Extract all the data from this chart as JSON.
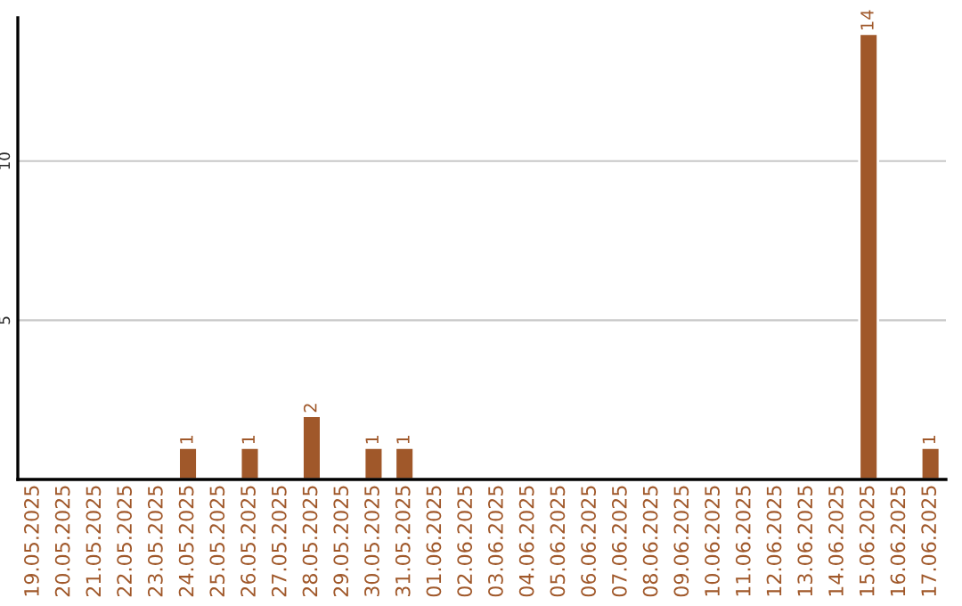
{
  "chart_data": {
    "type": "bar",
    "categories": [
      "19.05.2025",
      "20.05.2025",
      "21.05.2025",
      "22.05.2025",
      "23.05.2025",
      "24.05.2025",
      "25.05.2025",
      "26.05.2025",
      "27.05.2025",
      "28.05.2025",
      "29.05.2025",
      "30.05.2025",
      "31.05.2025",
      "01.06.2025",
      "02.06.2025",
      "03.06.2025",
      "04.06.2025",
      "05.06.2025",
      "06.06.2025",
      "07.06.2025",
      "08.06.2025",
      "09.06.2025",
      "10.06.2025",
      "11.06.2025",
      "12.06.2025",
      "13.06.2025",
      "14.06.2025",
      "15.06.2025",
      "16.06.2025",
      "17.06.2025"
    ],
    "values": [
      null,
      null,
      null,
      null,
      null,
      1,
      null,
      1,
      null,
      2,
      null,
      1,
      1,
      null,
      null,
      null,
      null,
      null,
      null,
      null,
      null,
      null,
      null,
      null,
      null,
      null,
      null,
      14,
      null,
      1
    ],
    "value_labels": [
      null,
      null,
      null,
      null,
      null,
      "1",
      null,
      "1",
      null,
      "2",
      null,
      "1",
      "1",
      null,
      null,
      null,
      null,
      null,
      null,
      null,
      null,
      null,
      null,
      null,
      null,
      null,
      null,
      "14",
      null,
      "1"
    ],
    "color": "#a0582a",
    "ylim": [
      0,
      14.5
    ],
    "yticks": [
      5,
      10
    ],
    "grid": "y",
    "legend": false
  }
}
